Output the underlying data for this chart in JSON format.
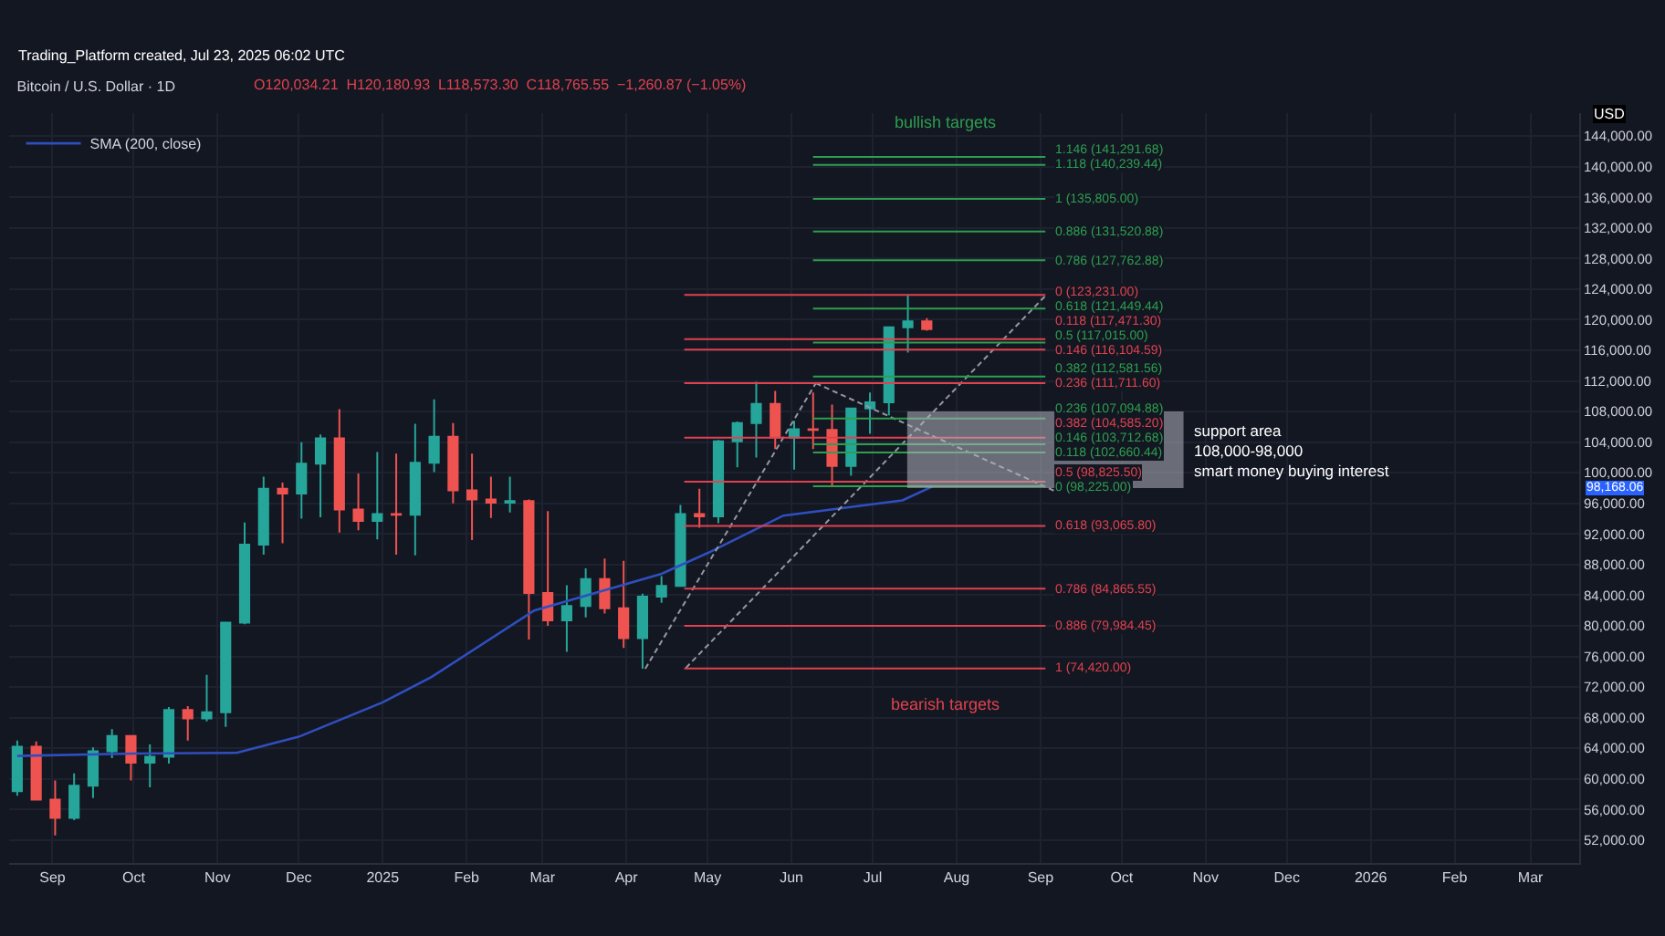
{
  "chart_data": {
    "type": "candlestick",
    "title": "Bitcoin / U.S. Dollar · 1D",
    "x": [
      "2024-08-19",
      "2024-08-26",
      "2024-09-02",
      "2024-09-09",
      "2024-09-16",
      "2024-09-23",
      "2024-09-30",
      "2024-10-07",
      "2024-10-14",
      "2024-10-21",
      "2024-10-28",
      "2024-11-04",
      "2024-11-11",
      "2024-11-18",
      "2024-11-25",
      "2024-12-02",
      "2024-12-09",
      "2024-12-16",
      "2024-12-23",
      "2024-12-30",
      "2025-01-06",
      "2025-01-13",
      "2025-01-20",
      "2025-01-27",
      "2025-02-03",
      "2025-02-10",
      "2025-02-17",
      "2025-02-24",
      "2025-03-03",
      "2025-03-10",
      "2025-03-17",
      "2025-03-24",
      "2025-03-31",
      "2025-04-07",
      "2025-04-14",
      "2025-04-21",
      "2025-04-28",
      "2025-05-05",
      "2025-05-12",
      "2025-05-19",
      "2025-05-26",
      "2025-06-02",
      "2025-06-09",
      "2025-06-16",
      "2025-06-23",
      "2025-06-30",
      "2025-07-07",
      "2025-07-14",
      "2025-07-21"
    ],
    "ohlc": [
      [
        58400,
        65000,
        57800,
        64200
      ],
      [
        64200,
        64900,
        57200,
        57300
      ],
      [
        57300,
        59800,
        52600,
        54900
      ],
      [
        54900,
        60700,
        54600,
        59100
      ],
      [
        59100,
        64100,
        57500,
        63600
      ],
      [
        63600,
        66500,
        62700,
        65600
      ],
      [
        65600,
        65600,
        59800,
        62100
      ],
      [
        62100,
        64500,
        58900,
        62900
      ],
      [
        62900,
        69400,
        62000,
        69000
      ],
      [
        69000,
        69500,
        65000,
        67900
      ],
      [
        67900,
        73600,
        67500,
        68700
      ],
      [
        68700,
        80500,
        66800,
        80400
      ],
      [
        80400,
        93500,
        80200,
        90600
      ],
      [
        90600,
        99500,
        89300,
        97900
      ],
      [
        97900,
        98700,
        90800,
        97300
      ],
      [
        97300,
        104000,
        94000,
        101200
      ],
      [
        101200,
        105000,
        94200,
        104500
      ],
      [
        104500,
        108300,
        92200,
        95200
      ],
      [
        95200,
        99900,
        92500,
        93700
      ],
      [
        93700,
        102700,
        91300,
        94600
      ],
      [
        94600,
        102500,
        89300,
        94500
      ],
      [
        94500,
        106400,
        89200,
        101300
      ],
      [
        101300,
        109600,
        100100,
        104700
      ],
      [
        104700,
        106500,
        96000,
        97700
      ],
      [
        97700,
        102500,
        91200,
        96500
      ],
      [
        96500,
        99500,
        94100,
        96100
      ],
      [
        96100,
        99500,
        94800,
        96300
      ],
      [
        96300,
        96500,
        78200,
        84300
      ],
      [
        84300,
        95000,
        80000,
        80700
      ],
      [
        80700,
        85300,
        76600,
        82600
      ],
      [
        82600,
        87500,
        81100,
        86100
      ],
      [
        86100,
        88800,
        81600,
        82300
      ],
      [
        82300,
        88500,
        77100,
        78400
      ],
      [
        78400,
        84200,
        74400,
        83800
      ],
      [
        83800,
        86500,
        83000,
        85200
      ],
      [
        85200,
        95800,
        85100,
        94600
      ],
      [
        94600,
        97900,
        92800,
        94300
      ],
      [
        94300,
        104300,
        93400,
        104100
      ],
      [
        104100,
        106700,
        100700,
        106500
      ],
      [
        106500,
        111900,
        102000,
        109000
      ],
      [
        109000,
        110700,
        103100,
        104600
      ],
      [
        104600,
        106800,
        100400,
        105700
      ],
      [
        105700,
        110500,
        103100,
        105600
      ],
      [
        105600,
        108900,
        98200,
        100900
      ],
      [
        100900,
        108500,
        99600,
        108400
      ],
      [
        108400,
        110500,
        105100,
        109200
      ],
      [
        109200,
        119000,
        107500,
        119000
      ],
      [
        119000,
        123200,
        115700,
        119800
      ],
      [
        119800,
        120200,
        118573.3,
        118765.55
      ]
    ],
    "series": [
      {
        "name": "SMA (200, close)",
        "type": "line",
        "color": "#2f4fbf",
        "x": [
          "2024-08-19",
          "2024-10-01",
          "2024-11-08",
          "2024-12-01",
          "2025-01-01",
          "2025-01-19",
          "2025-02-26",
          "2025-04-14",
          "2025-05-01",
          "2025-05-29",
          "2025-07-12",
          "2025-07-23"
        ],
        "values": [
          63000,
          63300,
          63400,
          65500,
          70000,
          73300,
          82000,
          86800,
          89500,
          94400,
          96400,
          98200
        ]
      },
      {
        "type": "line",
        "color": "#9598a1",
        "line_style": "dashed",
        "x": [
          "2025-04-08",
          "2025-06-10"
        ],
        "values": [
          74400,
          111700
        ]
      },
      {
        "type": "line",
        "color": "#9598a1",
        "line_style": "dashed",
        "x": [
          "2025-06-10",
          "2025-09-07"
        ],
        "values": [
          111700,
          97500
        ]
      },
      {
        "type": "line",
        "color": "#9598a1",
        "line_style": "dashed",
        "x": [
          "2025-04-23",
          "2025-09-03"
        ],
        "values": [
          74500,
          123200
        ]
      }
    ],
    "xlim": [
      "2024-08-16",
      "2026-03-19"
    ],
    "xticks": [
      {
        "value": "2024-09-01",
        "label": "Sep"
      },
      {
        "value": "2024-10-01",
        "label": "Oct"
      },
      {
        "value": "2024-11-01",
        "label": "Nov"
      },
      {
        "value": "2024-12-01",
        "label": "Dec"
      },
      {
        "value": "2025-01-01",
        "label": "2025"
      },
      {
        "value": "2025-02-01",
        "label": "Feb"
      },
      {
        "value": "2025-03-01",
        "label": "Mar"
      },
      {
        "value": "2025-04-01",
        "label": "Apr"
      },
      {
        "value": "2025-05-01",
        "label": "May"
      },
      {
        "value": "2025-06-01",
        "label": "Jun"
      },
      {
        "value": "2025-07-01",
        "label": "Jul"
      },
      {
        "value": "2025-08-01",
        "label": "Aug"
      },
      {
        "value": "2025-09-01",
        "label": "Sep"
      },
      {
        "value": "2025-10-01",
        "label": "Oct"
      },
      {
        "value": "2025-11-01",
        "label": "Nov"
      },
      {
        "value": "2025-12-01",
        "label": "Dec"
      },
      {
        "value": "2026-01-01",
        "label": "2026"
      },
      {
        "value": "2026-02-01",
        "label": "Feb"
      },
      {
        "value": "2026-03-01",
        "label": "Mar"
      }
    ],
    "ylim": [
      49000,
      147000
    ],
    "yticks": [
      {
        "value": 52000,
        "label": "52,000.00"
      },
      {
        "value": 56000,
        "label": "56,000.00"
      },
      {
        "value": 60000,
        "label": "60,000.00"
      },
      {
        "value": 64000,
        "label": "64,000.00"
      },
      {
        "value": 68000,
        "label": "68,000.00"
      },
      {
        "value": 72000,
        "label": "72,000.00"
      },
      {
        "value": 76000,
        "label": "76,000.00"
      },
      {
        "value": 80000,
        "label": "80,000.00"
      },
      {
        "value": 84000,
        "label": "84,000.00"
      },
      {
        "value": 88000,
        "label": "88,000.00"
      },
      {
        "value": 92000,
        "label": "92,000.00"
      },
      {
        "value": 96000,
        "label": "96,000.00"
      },
      {
        "value": 100000,
        "label": "100,000.00"
      },
      {
        "value": 104000,
        "label": "104,000.00"
      },
      {
        "value": 108000,
        "label": "108,000.00"
      },
      {
        "value": 112000,
        "label": "112,000.00"
      },
      {
        "value": 116000,
        "label": "116,000.00"
      },
      {
        "value": 120000,
        "label": "120,000.00"
      },
      {
        "value": 124000,
        "label": "124,000.00"
      },
      {
        "value": 128000,
        "label": "128,000.00"
      },
      {
        "value": 132000,
        "label": "132,000.00"
      },
      {
        "value": 136000,
        "label": "136,000.00"
      },
      {
        "value": 140000,
        "label": "140,000.00"
      },
      {
        "value": 144000,
        "label": "144,000.00"
      }
    ],
    "grid": true,
    "legend": "top left",
    "ref_lines": [
      {
        "axis": "y",
        "value": 123231.0,
        "label": "0 (123,231.00)",
        "color": "#e0424f"
      },
      {
        "axis": "y",
        "value": 117471.3,
        "label": "0.118 (117,471.30)",
        "color": "#e0424f"
      },
      {
        "axis": "y",
        "value": 116104.59,
        "label": "0.146 (116,104.59)",
        "color": "#e0424f"
      },
      {
        "axis": "y",
        "value": 111711.6,
        "label": "0.236 (111,711.60)",
        "color": "#e0424f"
      },
      {
        "axis": "y",
        "value": 104585.2,
        "label": "0.382 (104,585.20)",
        "color": "#e0424f"
      },
      {
        "axis": "y",
        "value": 98825.5,
        "label": "0.5 (98,825.50)",
        "color": "#e0424f"
      },
      {
        "axis": "y",
        "value": 93065.8,
        "label": "0.618 (93,065.80)",
        "color": "#e0424f"
      },
      {
        "axis": "y",
        "value": 84865.55,
        "label": "0.786 (84,865.55)",
        "color": "#e0424f"
      },
      {
        "axis": "y",
        "value": 79984.45,
        "label": "0.886 (79,984.45)",
        "color": "#e0424f"
      },
      {
        "axis": "y",
        "value": 74420.0,
        "label": "1 (74,420.00)",
        "color": "#e0424f"
      },
      {
        "axis": "y",
        "value": 141291.68,
        "label": "1.146 (141,291.68)",
        "color": "#2e9e4f"
      },
      {
        "axis": "y",
        "value": 140239.44,
        "label": "1.118 (140,239.44)",
        "color": "#2e9e4f"
      },
      {
        "axis": "y",
        "value": 135805.0,
        "label": "1 (135,805.00)",
        "color": "#2e9e4f"
      },
      {
        "axis": "y",
        "value": 131520.88,
        "label": "0.886 (131,520.88)",
        "color": "#2e9e4f"
      },
      {
        "axis": "y",
        "value": 127762.88,
        "label": "0.786 (127,762.88)",
        "color": "#2e9e4f"
      },
      {
        "axis": "y",
        "value": 121449.44,
        "label": "0.618 (121,449.44)",
        "color": "#2e9e4f"
      },
      {
        "axis": "y",
        "value": 117015.0,
        "label": "0.5 (117,015.00)",
        "color": "#2e9e4f"
      },
      {
        "axis": "y",
        "value": 112581.56,
        "label": "0.382 (112,581.56)",
        "color": "#2e9e4f"
      },
      {
        "axis": "y",
        "value": 107094.88,
        "label": "0.236 (107,094.88)",
        "color": "#2e9e4f"
      },
      {
        "axis": "y",
        "value": 103712.68,
        "label": "0.146 (103,712.68)",
        "color": "#2e9e4f"
      },
      {
        "axis": "y",
        "value": 102660.44,
        "label": "0.118 (102,660.44)",
        "color": "#2e9e4f"
      },
      {
        "axis": "y",
        "value": 98225.0,
        "label": "0 (98,225.00)",
        "color": "#2e9e4f"
      }
    ],
    "bands": [
      {
        "axis": "y",
        "from": 98000,
        "to": 108000,
        "label": "support area\n108,000-98,000\nsmart money buying interest",
        "color": "#b2b5be"
      }
    ],
    "annotations": [
      "Trading_Platform created, Jul 23, 2025 06:02 UTC",
      "O120,034.21  H120,180.93  L118,573.30  C118,765.55  −1,260.87 (−1.05%)",
      "USD",
      "98,168.06",
      "bullish targets",
      "bearish targets"
    ]
  }
}
